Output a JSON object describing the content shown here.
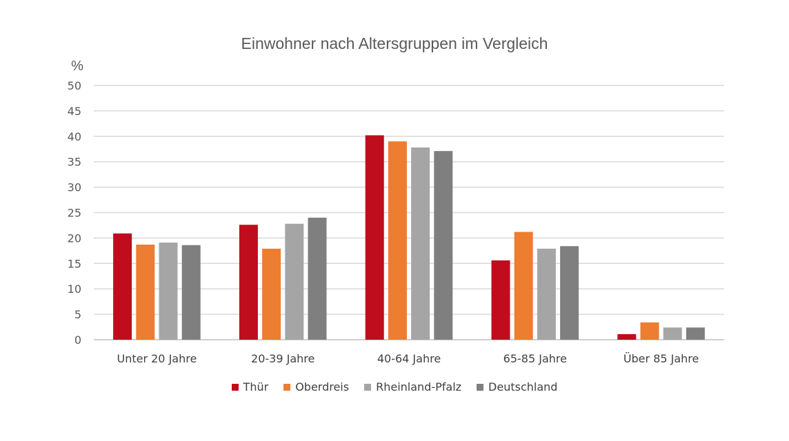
{
  "chart_data": {
    "type": "bar",
    "title": "Einwohner nach Altersgruppen im Vergleich",
    "ylabel": "%",
    "ylim": [
      0,
      50
    ],
    "yticks": [
      0,
      5,
      10,
      15,
      20,
      25,
      30,
      35,
      40,
      45,
      50
    ],
    "grid": true,
    "legend_position": "bottom",
    "categories": [
      "Unter 20 Jahre",
      "20-39 Jahre",
      "40-64 Jahre",
      "65-85 Jahre",
      "Über 85 Jahre"
    ],
    "series": [
      {
        "name": "Thür",
        "color": "#c00d1e",
        "values": [
          20.9,
          22.6,
          40.2,
          15.6,
          1.1
        ]
      },
      {
        "name": "Oberdreis",
        "color": "#ed7d31",
        "values": [
          18.7,
          17.9,
          39.0,
          21.2,
          3.4
        ]
      },
      {
        "name": "Rheinland-Pfalz",
        "color": "#a5a5a5",
        "values": [
          19.1,
          22.8,
          37.8,
          17.9,
          2.4
        ]
      },
      {
        "name": "Deutschland",
        "color": "#7f7f7f",
        "values": [
          18.6,
          24.0,
          37.1,
          18.4,
          2.4
        ]
      }
    ]
  }
}
